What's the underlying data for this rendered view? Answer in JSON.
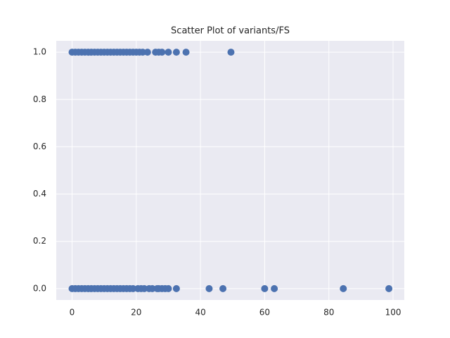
{
  "chart_data": {
    "type": "scatter",
    "title": "Scatter Plot of variants/FS",
    "color": "#4c72b0",
    "x": [
      0,
      1,
      2,
      3,
      4,
      5,
      6,
      7,
      8,
      9,
      10,
      11,
      12,
      13,
      14,
      15,
      16,
      17,
      18,
      19,
      20,
      21,
      22,
      23.5,
      26,
      27,
      28,
      30,
      32.5,
      35.5,
      49.5,
      0,
      1,
      2,
      3,
      4,
      5,
      6,
      7,
      8,
      9,
      10,
      11,
      12,
      13,
      14,
      15,
      16,
      17,
      18,
      19,
      20.5,
      21.5,
      22.5,
      24,
      25,
      26.5,
      27,
      28,
      29,
      30,
      32.5,
      42.7,
      47,
      60,
      63,
      84.5,
      98.7
    ],
    "values": [
      1,
      1,
      1,
      1,
      1,
      1,
      1,
      1,
      1,
      1,
      1,
      1,
      1,
      1,
      1,
      1,
      1,
      1,
      1,
      1,
      1,
      1,
      1,
      1,
      1,
      1,
      1,
      1,
      1,
      1,
      1,
      0,
      0,
      0,
      0,
      0,
      0,
      0,
      0,
      0,
      0,
      0,
      0,
      0,
      0,
      0,
      0,
      0,
      0,
      0,
      0,
      0,
      0,
      0,
      0,
      0,
      0,
      0,
      0,
      0,
      0,
      0,
      0,
      0,
      0,
      0,
      0,
      0
    ],
    "xlim": [
      -4.93,
      103.5
    ],
    "ylim": [
      -0.048,
      1.048
    ],
    "xticks": [
      0,
      20,
      40,
      60,
      80,
      100
    ],
    "yticks": [
      {
        "value": 0,
        "label": "0.0"
      },
      {
        "value": 0.2,
        "label": "0.2"
      },
      {
        "value": 0.4,
        "label": "0.4"
      },
      {
        "value": 0.6,
        "label": "0.6"
      },
      {
        "value": 0.8,
        "label": "0.8"
      },
      {
        "value": 1,
        "label": "1.0"
      }
    ],
    "grid": true
  }
}
